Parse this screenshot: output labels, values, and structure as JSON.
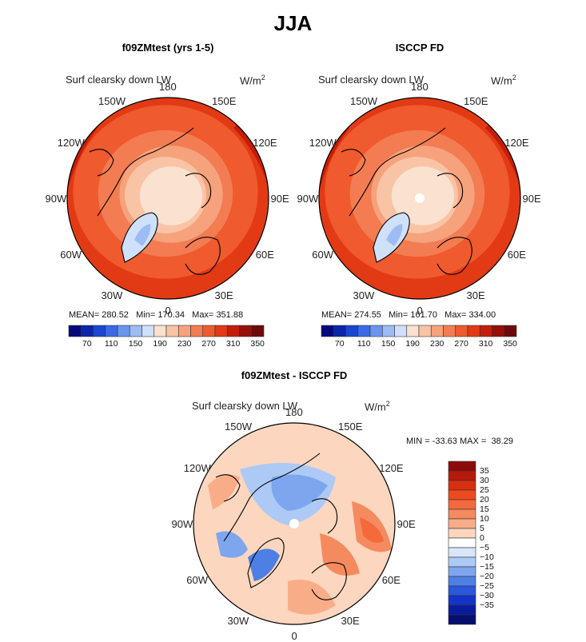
{
  "figure": {
    "title": "JJA",
    "colors": {
      "land_outline": "#000000",
      "background": "#ffffff"
    }
  },
  "chart_data": [
    {
      "type": "heatmap",
      "projection": "north-polar-stereographic",
      "title": "f09ZMtest (yrs 1-5)",
      "variable": "Surf clearsky down LW",
      "units_base": "W/m",
      "units_exp": "2",
      "lon_labels": [
        "180",
        "150E",
        "120E",
        "90E",
        "60E",
        "30E",
        "0",
        "30W",
        "60W",
        "90W",
        "120W",
        "150W"
      ],
      "stats": {
        "mean_label": "MEAN=",
        "mean": "280.52",
        "min_label": "Min=",
        "min": "170.34",
        "max_label": "Max=",
        "max": "351.88"
      },
      "colorbar": {
        "ticks": [
          "70",
          "110",
          "150",
          "190",
          "230",
          "270",
          "310",
          "350"
        ],
        "colors": [
          "#08087a",
          "#0b24a8",
          "#1c46d0",
          "#3a6ae6",
          "#6a95ef",
          "#9dbcf4",
          "#cfe0fb",
          "#fbe1cf",
          "#f9c4a6",
          "#f6a27c",
          "#f37c52",
          "#ef5a2e",
          "#e23a14",
          "#c41d0a",
          "#96100a",
          "#6e0a0a"
        ]
      }
    },
    {
      "type": "heatmap",
      "projection": "north-polar-stereographic",
      "title": "ISCCP FD",
      "variable": "Surf clearsky down LW",
      "units_base": "W/m",
      "units_exp": "2",
      "lon_labels": [
        "180",
        "150E",
        "120E",
        "90E",
        "60E",
        "30E",
        "0",
        "30W",
        "60W",
        "90W",
        "120W",
        "150W"
      ],
      "stats": {
        "mean_label": "MEAN=",
        "mean": "274.55",
        "min_label": "Min=",
        "min": "161.70",
        "max_label": "Max=",
        "max": "334.00"
      },
      "colorbar": {
        "ticks": [
          "70",
          "110",
          "150",
          "190",
          "230",
          "270",
          "310",
          "350"
        ],
        "colors": [
          "#08087a",
          "#0b24a8",
          "#1c46d0",
          "#3a6ae6",
          "#6a95ef",
          "#9dbcf4",
          "#cfe0fb",
          "#fbe1cf",
          "#f9c4a6",
          "#f6a27c",
          "#f37c52",
          "#ef5a2e",
          "#e23a14",
          "#c41d0a",
          "#96100a",
          "#6e0a0a"
        ]
      }
    },
    {
      "type": "heatmap",
      "projection": "north-polar-stereographic",
      "title": "f09ZMtest - ISCCP FD",
      "variable": "Surf clearsky down LW",
      "units_base": "W/m",
      "units_exp": "2",
      "lon_labels": [
        "180",
        "150E",
        "120E",
        "90E",
        "60E",
        "30E",
        "0",
        "30W",
        "60W",
        "90W",
        "120W",
        "150W"
      ],
      "stats": {
        "min_label": "MIN =",
        "min": "-33.63",
        "max_label": "MAX =",
        "max": "38.29"
      },
      "colorbar": {
        "ticks": [
          "35",
          "30",
          "25",
          "20",
          "15",
          "10",
          "5",
          "0",
          "−5",
          "−10",
          "−15",
          "−20",
          "−25",
          "−30",
          "−35"
        ],
        "colors": [
          "#8e0a0a",
          "#b51a0c",
          "#d8300f",
          "#ef4a1f",
          "#f46a3c",
          "#f58a5e",
          "#f8ad88",
          "#fcd6bf",
          "#ffffff",
          "#d8e6fb",
          "#adc9f5",
          "#7ea6ee",
          "#4e7fe5",
          "#2a57dc",
          "#1234c9",
          "#0a1c9e",
          "#060e6e"
        ]
      }
    }
  ]
}
